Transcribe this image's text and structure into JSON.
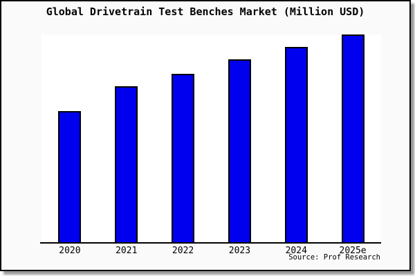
{
  "header": {
    "title": "Global Drivetrain Test Benches Market (Million USD)"
  },
  "footer": {
    "source": "Source: Prof Research"
  },
  "colors": {
    "bar_fill": "#0000ee",
    "bar_border": "#000000",
    "axis": "#000000",
    "card_bg": "#fafafa",
    "plot_bg": "#ffffff",
    "shadow": "#9a9a9a"
  },
  "chart_data": {
    "type": "bar",
    "title": "Global Drivetrain Test Benches Market (Million USD)",
    "categories": [
      "2020",
      "2021",
      "2022",
      "2023",
      "2024",
      "2025e"
    ],
    "values": [
      63,
      75,
      81,
      88,
      94,
      100
    ],
    "xlabel": "",
    "ylabel": "",
    "ylim": [
      0,
      100
    ],
    "y_axis_visible": false,
    "grid": false,
    "legend": false,
    "source": "Source: Prof Research"
  }
}
